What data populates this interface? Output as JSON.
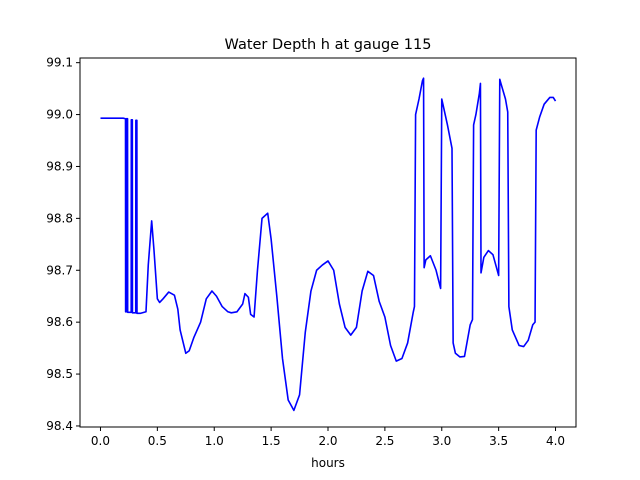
{
  "chart_data": {
    "type": "line",
    "title": "Water Depth h at gauge 115",
    "xlabel": "hours",
    "ylabel": "",
    "xlim": [
      -0.18,
      4.18
    ],
    "ylim": [
      98.398,
      99.109
    ],
    "xticks": [
      0.0,
      0.5,
      1.0,
      1.5,
      2.0,
      2.5,
      3.0,
      3.5,
      4.0
    ],
    "xtick_labels": [
      "0.0",
      "0.5",
      "1.0",
      "1.5",
      "2.0",
      "2.5",
      "3.0",
      "3.5",
      "4.0"
    ],
    "yticks": [
      98.4,
      98.5,
      98.6,
      98.7,
      98.8,
      98.9,
      99.0,
      99.1
    ],
    "ytick_labels": [
      "98.4",
      "98.5",
      "98.6",
      "98.7",
      "98.8",
      "98.9",
      "99.0",
      "99.1"
    ],
    "grid": false,
    "series": [
      {
        "color": "#0000ff",
        "x": [
          0.0,
          0.1,
          0.2,
          0.22,
          0.221,
          0.228,
          0.229,
          0.238,
          0.239,
          0.27,
          0.271,
          0.28,
          0.281,
          0.31,
          0.311,
          0.32,
          0.321,
          0.35,
          0.4,
          0.42,
          0.45,
          0.47,
          0.5,
          0.52,
          0.55,
          0.6,
          0.65,
          0.68,
          0.7,
          0.75,
          0.78,
          0.82,
          0.88,
          0.93,
          0.98,
          1.02,
          1.07,
          1.12,
          1.15,
          1.2,
          1.25,
          1.27,
          1.3,
          1.32,
          1.35,
          1.38,
          1.42,
          1.47,
          1.5,
          1.55,
          1.6,
          1.65,
          1.7,
          1.75,
          1.8,
          1.85,
          1.9,
          1.95,
          2.0,
          2.05,
          2.1,
          2.15,
          2.2,
          2.25,
          2.3,
          2.35,
          2.4,
          2.45,
          2.5,
          2.55,
          2.6,
          2.65,
          2.7,
          2.75,
          2.76,
          2.77,
          2.8,
          2.83,
          2.84,
          2.845,
          2.86,
          2.9,
          2.95,
          2.99,
          3.0,
          3.01,
          3.05,
          3.09,
          3.1,
          3.12,
          3.16,
          3.2,
          3.25,
          3.27,
          3.28,
          3.3,
          3.33,
          3.34,
          3.345,
          3.37,
          3.41,
          3.45,
          3.5,
          3.51,
          3.52,
          3.56,
          3.58,
          3.59,
          3.62,
          3.68,
          3.72,
          3.76,
          3.8,
          3.82,
          3.83,
          3.86,
          3.9,
          3.95,
          3.98,
          4.0
        ],
        "values": [
          98.993,
          98.993,
          98.993,
          98.992,
          98.62,
          98.62,
          98.992,
          98.992,
          98.619,
          98.619,
          98.99,
          98.99,
          98.618,
          98.618,
          98.989,
          98.989,
          98.617,
          98.617,
          98.62,
          98.71,
          98.795,
          98.74,
          98.645,
          98.638,
          98.645,
          98.658,
          98.652,
          98.625,
          98.585,
          98.54,
          98.545,
          98.57,
          98.6,
          98.645,
          98.66,
          98.65,
          98.63,
          98.62,
          98.618,
          98.62,
          98.635,
          98.655,
          98.648,
          98.615,
          98.61,
          98.7,
          98.8,
          98.81,
          98.76,
          98.65,
          98.53,
          98.45,
          98.43,
          98.46,
          98.58,
          98.66,
          98.7,
          98.71,
          98.718,
          98.7,
          98.635,
          98.59,
          98.575,
          98.59,
          98.66,
          98.698,
          98.69,
          98.64,
          98.61,
          98.555,
          98.525,
          98.53,
          98.56,
          98.62,
          98.63,
          99.0,
          99.03,
          99.065,
          99.07,
          98.705,
          98.72,
          98.728,
          98.7,
          98.665,
          99.03,
          99.02,
          98.98,
          98.935,
          98.56,
          98.54,
          98.533,
          98.534,
          98.595,
          98.605,
          98.98,
          99.0,
          99.04,
          99.06,
          98.695,
          98.725,
          98.738,
          98.73,
          98.69,
          99.068,
          99.06,
          99.03,
          99.005,
          98.63,
          98.585,
          98.555,
          98.553,
          98.565,
          98.595,
          98.6,
          98.97,
          98.995,
          99.02,
          99.033,
          99.033,
          99.026
        ]
      }
    ]
  }
}
